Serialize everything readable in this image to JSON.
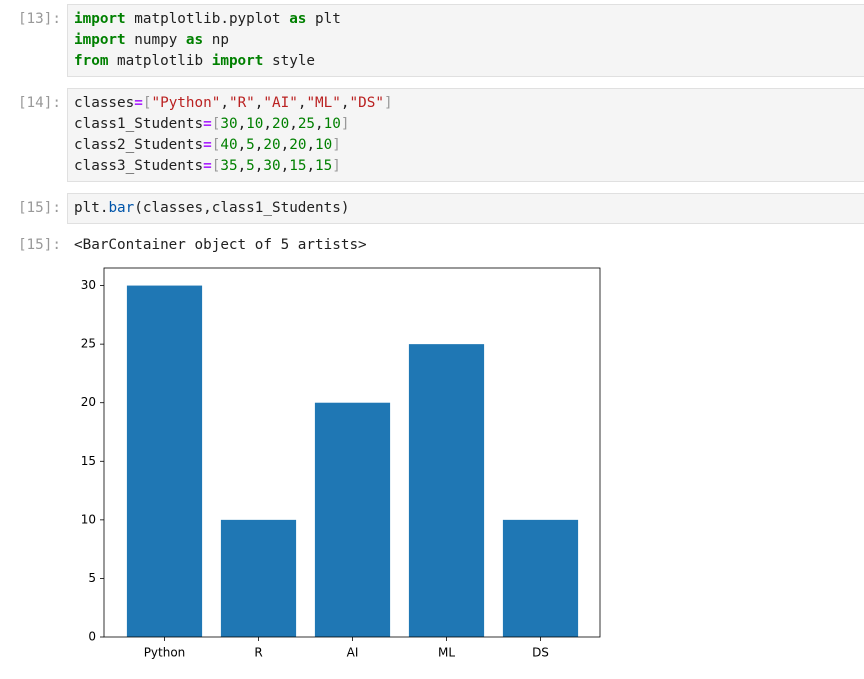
{
  "cells": [
    {
      "prompt": "[13]:",
      "lines": [
        [
          {
            "text": "import",
            "color": "#008000",
            "bold": true
          },
          {
            "text": " matplotlib.pyplot ",
            "color": "#212121"
          },
          {
            "text": "as",
            "color": "#008000",
            "bold": true
          },
          {
            "text": " plt",
            "color": "#212121"
          }
        ],
        [
          {
            "text": "import",
            "color": "#008000",
            "bold": true
          },
          {
            "text": " numpy ",
            "color": "#212121"
          },
          {
            "text": "as",
            "color": "#008000",
            "bold": true
          },
          {
            "text": " np",
            "color": "#212121"
          }
        ],
        [
          {
            "text": "from",
            "color": "#008000",
            "bold": true
          },
          {
            "text": " matplotlib ",
            "color": "#212121"
          },
          {
            "text": "import",
            "color": "#008000",
            "bold": true
          },
          {
            "text": " style",
            "color": "#212121"
          }
        ]
      ]
    },
    {
      "prompt": "[14]:",
      "lines": [
        [
          {
            "text": "classes",
            "color": "#212121"
          },
          {
            "text": "=",
            "color": "#aa22ff",
            "bold": true
          },
          {
            "text": "[",
            "color": "#999999"
          },
          {
            "text": "\"Python\"",
            "color": "#ba2121"
          },
          {
            "text": ",",
            "color": "#212121"
          },
          {
            "text": "\"R\"",
            "color": "#ba2121"
          },
          {
            "text": ",",
            "color": "#212121"
          },
          {
            "text": "\"AI\"",
            "color": "#ba2121"
          },
          {
            "text": ",",
            "color": "#212121"
          },
          {
            "text": "\"ML\"",
            "color": "#ba2121"
          },
          {
            "text": ",",
            "color": "#212121"
          },
          {
            "text": "\"DS\"",
            "color": "#ba2121"
          },
          {
            "text": "]",
            "color": "#999999"
          }
        ],
        [
          {
            "text": "class1_Students",
            "color": "#212121"
          },
          {
            "text": "=",
            "color": "#aa22ff",
            "bold": true
          },
          {
            "text": "[",
            "color": "#999999"
          },
          {
            "text": "30",
            "color": "#008000"
          },
          {
            "text": ",",
            "color": "#212121"
          },
          {
            "text": "10",
            "color": "#008000"
          },
          {
            "text": ",",
            "color": "#212121"
          },
          {
            "text": "20",
            "color": "#008000"
          },
          {
            "text": ",",
            "color": "#212121"
          },
          {
            "text": "25",
            "color": "#008000"
          },
          {
            "text": ",",
            "color": "#212121"
          },
          {
            "text": "10",
            "color": "#008000"
          },
          {
            "text": "]",
            "color": "#999999"
          }
        ],
        [
          {
            "text": "class2_Students",
            "color": "#212121"
          },
          {
            "text": "=",
            "color": "#aa22ff",
            "bold": true
          },
          {
            "text": "[",
            "color": "#999999"
          },
          {
            "text": "40",
            "color": "#008000"
          },
          {
            "text": ",",
            "color": "#212121"
          },
          {
            "text": "5",
            "color": "#008000"
          },
          {
            "text": ",",
            "color": "#212121"
          },
          {
            "text": "20",
            "color": "#008000"
          },
          {
            "text": ",",
            "color": "#212121"
          },
          {
            "text": "20",
            "color": "#008000"
          },
          {
            "text": ",",
            "color": "#212121"
          },
          {
            "text": "10",
            "color": "#008000"
          },
          {
            "text": "]",
            "color": "#999999"
          }
        ],
        [
          {
            "text": "class3_Students",
            "color": "#212121"
          },
          {
            "text": "=",
            "color": "#aa22ff",
            "bold": true
          },
          {
            "text": "[",
            "color": "#999999"
          },
          {
            "text": "35",
            "color": "#008000"
          },
          {
            "text": ",",
            "color": "#212121"
          },
          {
            "text": "5",
            "color": "#008000"
          },
          {
            "text": ",",
            "color": "#212121"
          },
          {
            "text": "30",
            "color": "#008000"
          },
          {
            "text": ",",
            "color": "#212121"
          },
          {
            "text": "15",
            "color": "#008000"
          },
          {
            "text": ",",
            "color": "#212121"
          },
          {
            "text": "15",
            "color": "#008000"
          },
          {
            "text": "]",
            "color": "#999999"
          }
        ]
      ]
    },
    {
      "prompt": "[15]:",
      "lines": [
        [
          {
            "text": "plt.",
            "color": "#212121"
          },
          {
            "text": "bar",
            "color": "#0055aa"
          },
          {
            "text": "(classes,class1_Students)",
            "color": "#212121"
          }
        ]
      ]
    }
  ],
  "output": {
    "prompt": "[15]:",
    "text": "<BarContainer object of 5 artists>"
  },
  "chart_data": {
    "type": "bar",
    "categories": [
      "Python",
      "R",
      "AI",
      "ML",
      "DS"
    ],
    "values": [
      30,
      10,
      20,
      25,
      10
    ],
    "color": "#1f77b4",
    "ylim": [
      0,
      31.5
    ],
    "yticks": [
      0,
      5,
      10,
      15,
      20,
      25,
      30
    ]
  }
}
